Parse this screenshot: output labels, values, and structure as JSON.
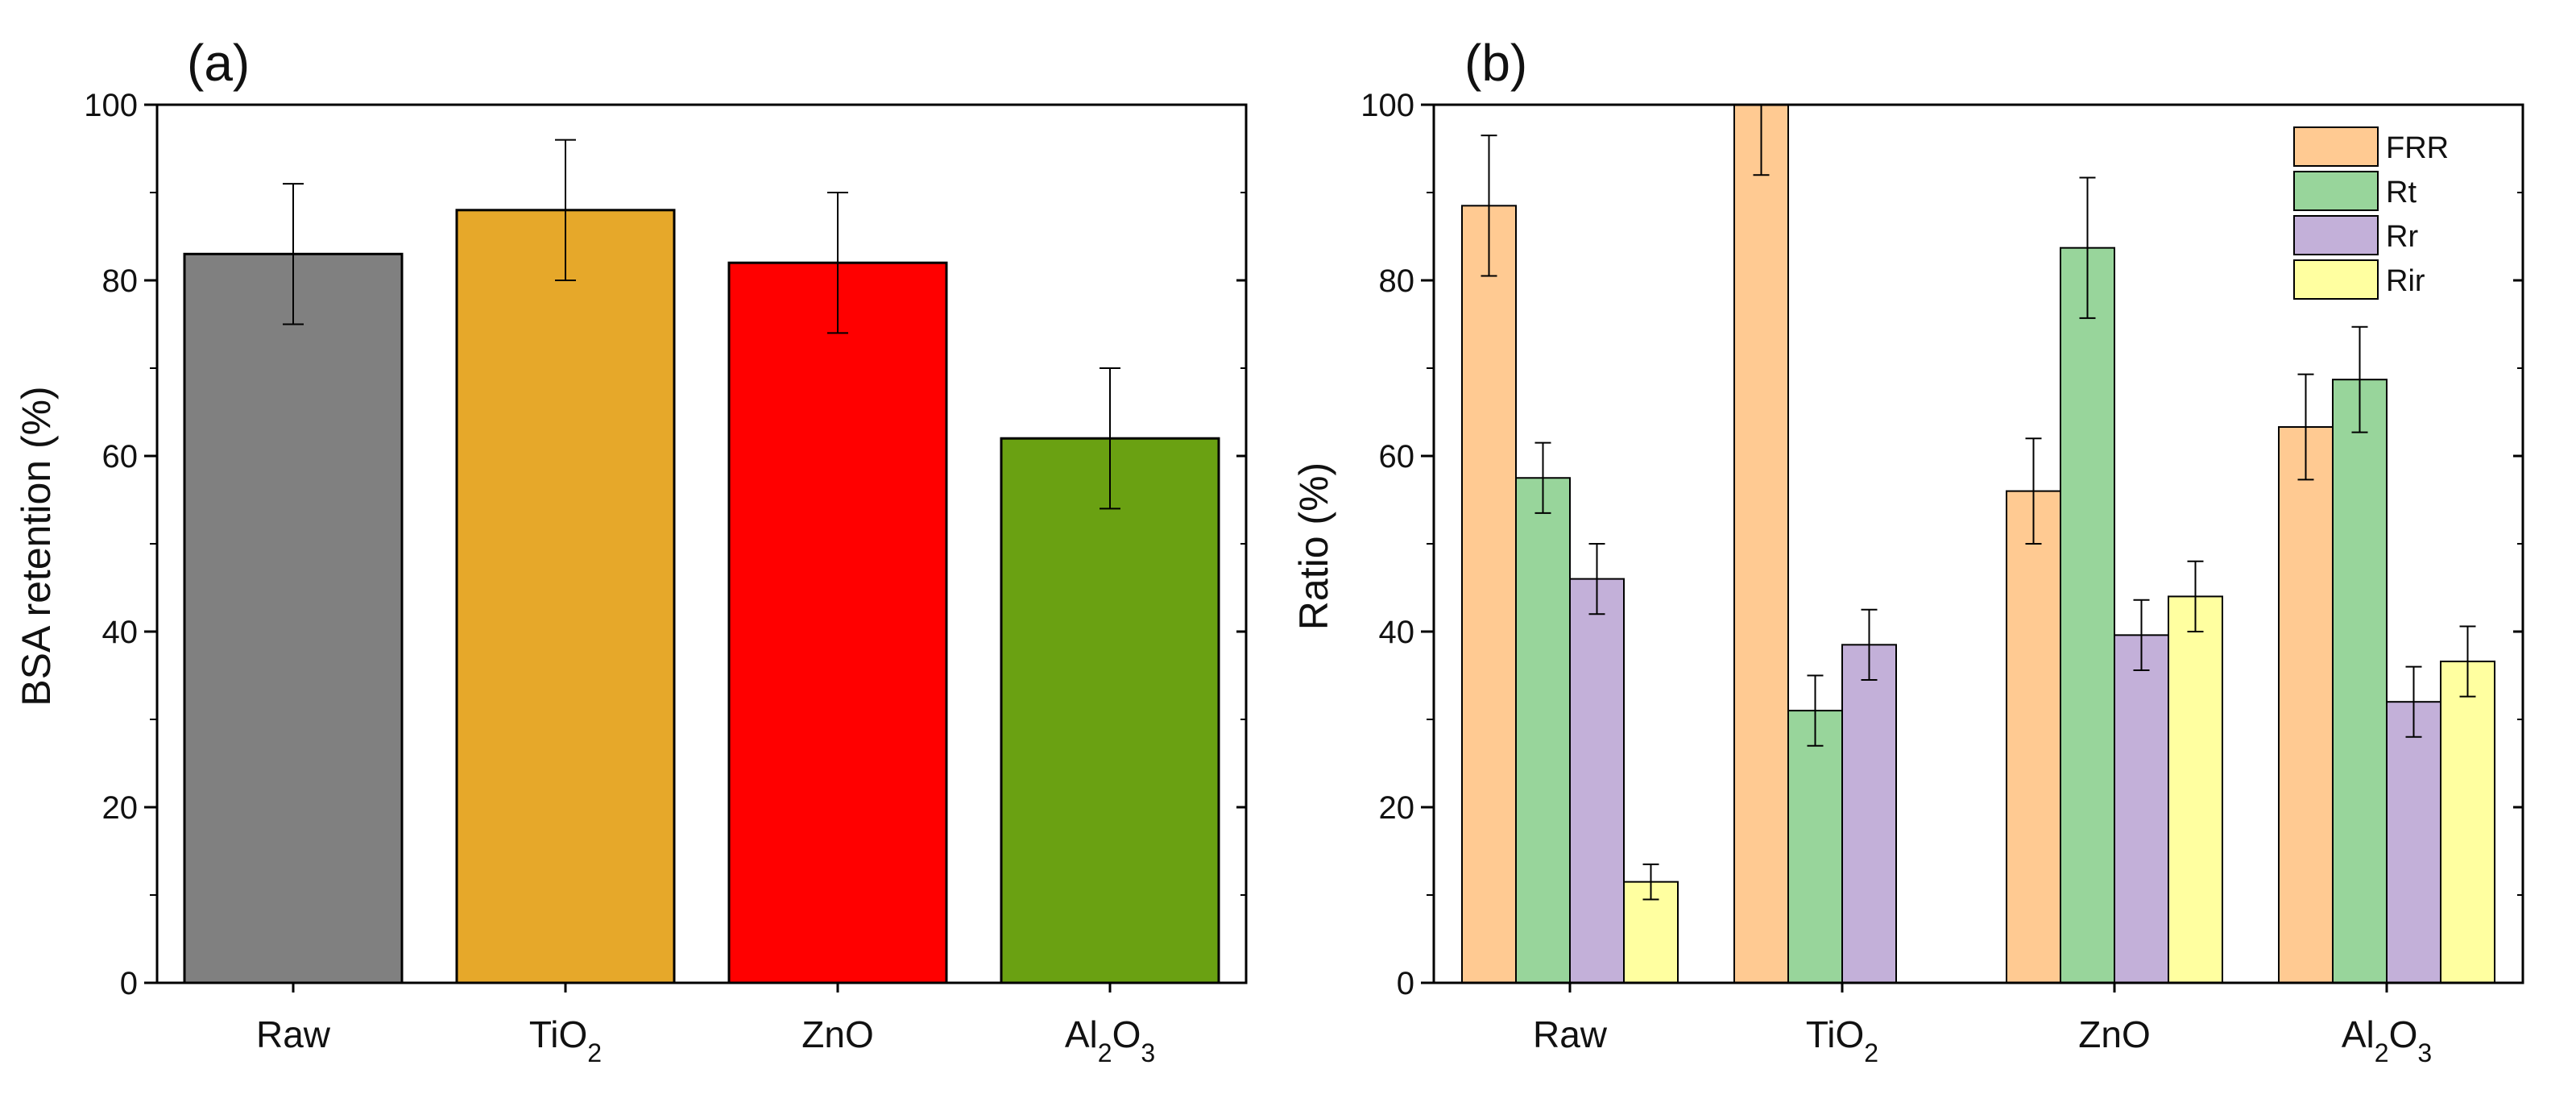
{
  "chart_data": [
    {
      "panel": "(a)",
      "type": "bar",
      "ylabel": "BSA retention (%)",
      "ylim": [
        0,
        100
      ],
      "yticks": [
        "0",
        "20",
        "40",
        "60",
        "80",
        "100"
      ],
      "categories": [
        {
          "base": "Raw",
          "sub": ""
        },
        {
          "base": "TiO",
          "sub": "2"
        },
        {
          "base": "ZnO",
          "sub": ""
        },
        {
          "base": "Al",
          "sub": "2",
          "base2": "O",
          "sub2": "3"
        }
      ],
      "values": [
        83,
        88,
        82,
        62
      ],
      "errors": [
        8,
        8,
        8,
        8
      ],
      "colors": [
        "#808080",
        "#E6A82A",
        "#FF0000",
        "#6AA112"
      ]
    },
    {
      "panel": "(b)",
      "type": "bar",
      "ylabel": "Ratio (%)",
      "ylim": [
        0,
        100
      ],
      "yticks": [
        "0",
        "20",
        "40",
        "60",
        "80",
        "100"
      ],
      "categories": [
        {
          "base": "Raw",
          "sub": ""
        },
        {
          "base": "TiO",
          "sub": "2"
        },
        {
          "base": "ZnO",
          "sub": ""
        },
        {
          "base": "Al",
          "sub": "2",
          "base2": "O",
          "sub2": "3"
        }
      ],
      "legend_position": "top-right",
      "series": [
        {
          "name": "FRR",
          "color": "#FFCA92",
          "values": [
            88.5,
            100,
            56,
            63.3
          ],
          "errors": [
            8,
            8,
            6,
            6
          ]
        },
        {
          "name": "Rt",
          "color": "#98D59B",
          "values": [
            57.5,
            31,
            83.7,
            68.7
          ],
          "errors": [
            4,
            4,
            8,
            6
          ]
        },
        {
          "name": "Rr",
          "color": "#C3B0D9",
          "values": [
            46,
            38.5,
            39.6,
            32
          ],
          "errors": [
            4,
            4,
            4,
            4
          ]
        },
        {
          "name": "Rir",
          "color": "#FFFFA0",
          "values": [
            11.5,
            null,
            44,
            36.6
          ],
          "errors": [
            2,
            null,
            4,
            4
          ]
        }
      ]
    }
  ]
}
